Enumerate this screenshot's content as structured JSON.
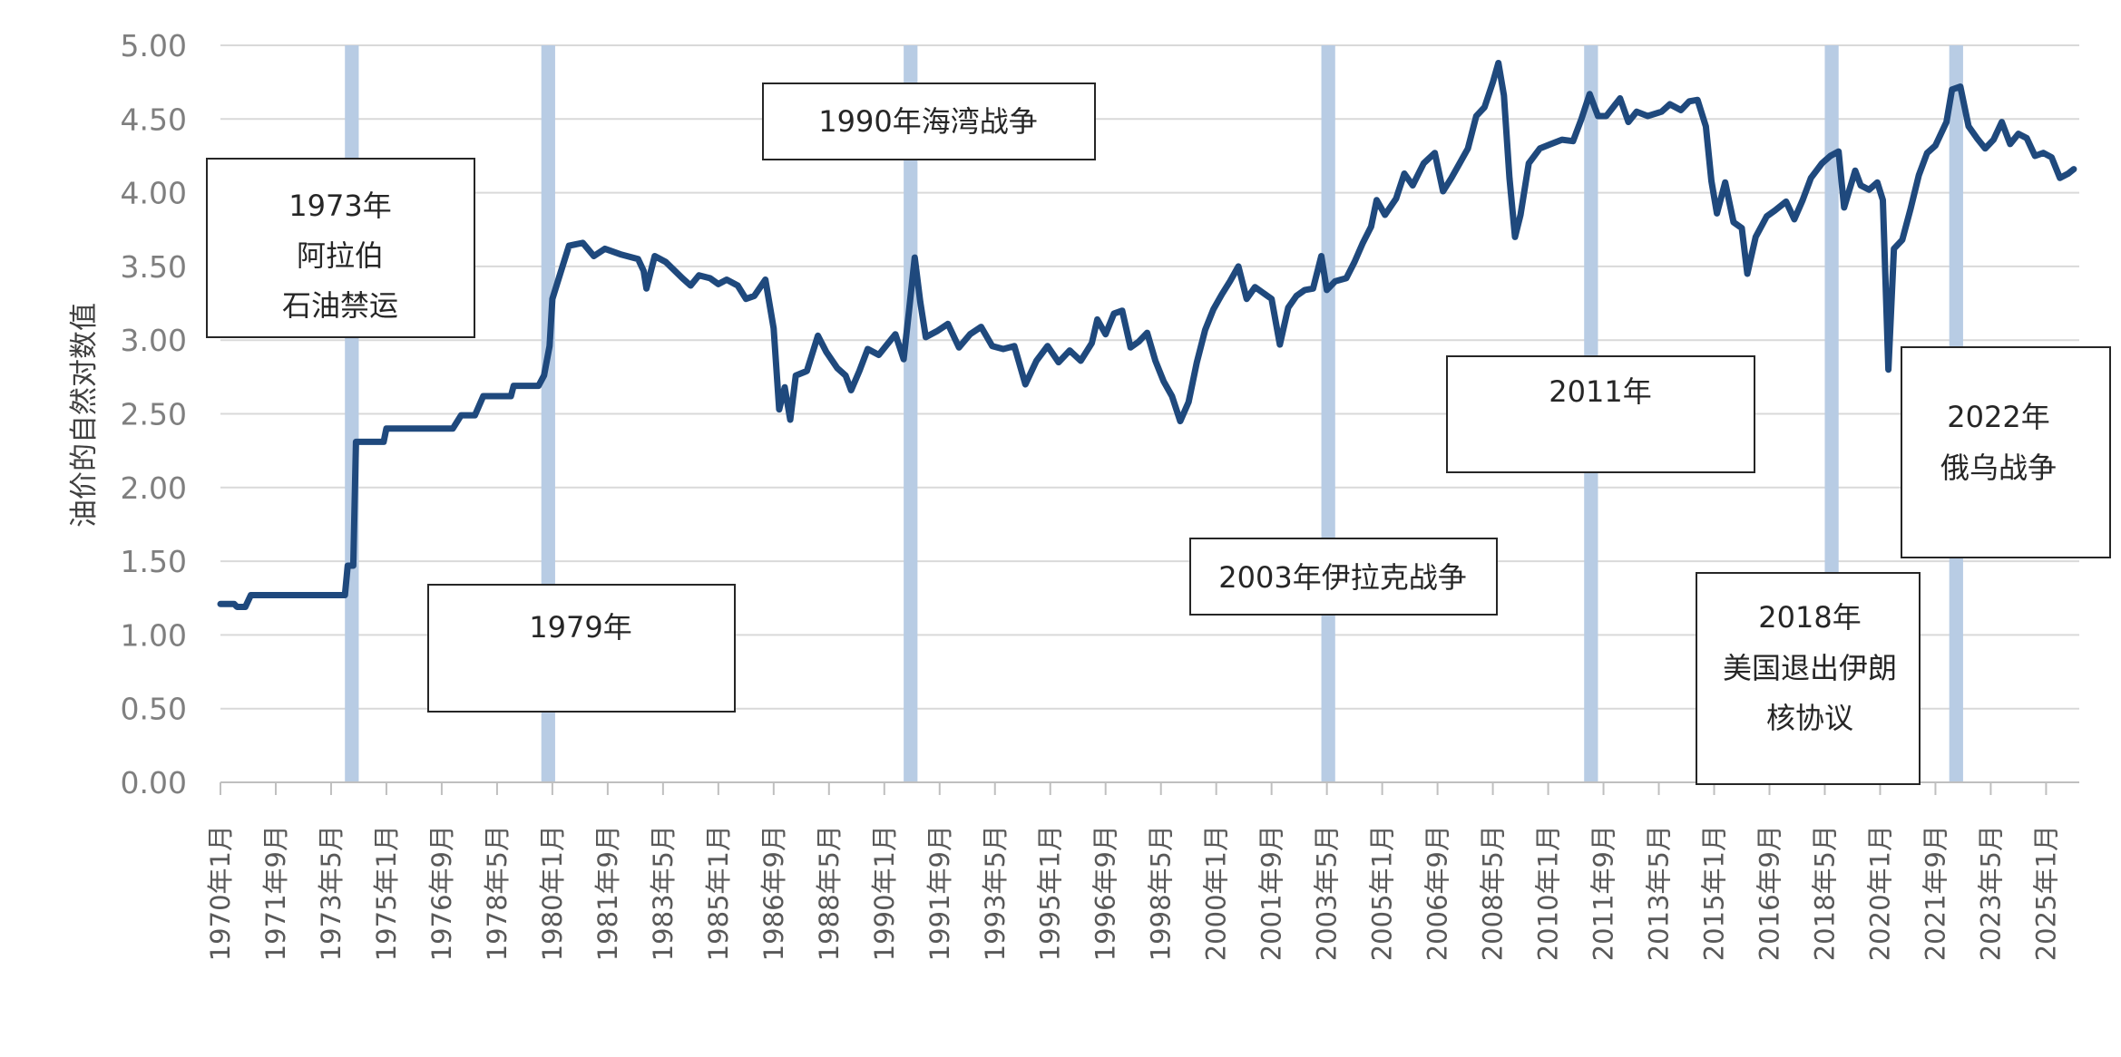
{
  "chart_data": {
    "type": "line",
    "title": "",
    "xlabel": "",
    "ylabel": "油价的自然对数值",
    "ylim": [
      0,
      5
    ],
    "yticks": [
      "0.00",
      "0.50",
      "1.00",
      "1.50",
      "2.00",
      "2.50",
      "3.00",
      "3.50",
      "4.00",
      "4.50",
      "5.00"
    ],
    "xlim": [
      "1970-01",
      "2026-01"
    ],
    "grid": "horizontal",
    "xtick_labels": [
      "1970年1月",
      "1971年9月",
      "1973年5月",
      "1975年1月",
      "1976年9月",
      "1978年5月",
      "1980年1月",
      "1981年9月",
      "1983年5月",
      "1985年1月",
      "1986年9月",
      "1988年5月",
      "1990年1月",
      "1991年9月",
      "1993年5月",
      "1995年1月",
      "1996年9月",
      "1998年5月",
      "2000年1月",
      "2001年9月",
      "2003年5月",
      "2005年1月",
      "2006年9月",
      "2008年5月",
      "2010年1月",
      "2011年9月",
      "2013年5月",
      "2015年1月",
      "2016年9月",
      "2018年5月",
      "2020年1月",
      "2021年9月",
      "2023年5月",
      "2025年1月"
    ],
    "xtick_dates": [
      "1970-01",
      "1971-09",
      "1973-05",
      "1975-01",
      "1976-09",
      "1978-05",
      "1980-01",
      "1981-09",
      "1983-05",
      "1985-01",
      "1986-09",
      "1988-05",
      "1990-01",
      "1991-09",
      "1993-05",
      "1995-01",
      "1996-09",
      "1998-05",
      "2000-01",
      "2001-09",
      "2003-05",
      "2005-01",
      "2006-09",
      "2008-05",
      "2010-01",
      "2011-09",
      "2013-05",
      "2015-01",
      "2016-09",
      "2018-05",
      "2020-01",
      "2021-09",
      "2023-05",
      "2025-01"
    ],
    "series": [
      {
        "color": "#1f497d",
        "points": [
          [
            "1970-01",
            1.21
          ],
          [
            "1970-06",
            1.21
          ],
          [
            "1970-07",
            1.19
          ],
          [
            "1970-10",
            1.19
          ],
          [
            "1970-12",
            1.27
          ],
          [
            "1973-08",
            1.27
          ],
          [
            "1973-10",
            1.27
          ],
          [
            "1973-11",
            1.47
          ],
          [
            "1974-01",
            1.47
          ],
          [
            "1974-02",
            2.31
          ],
          [
            "1974-12",
            2.31
          ],
          [
            "1975-01",
            2.4
          ],
          [
            "1977-01",
            2.4
          ],
          [
            "1977-04",
            2.49
          ],
          [
            "1977-09",
            2.49
          ],
          [
            "1977-12",
            2.62
          ],
          [
            "1978-10",
            2.62
          ],
          [
            "1978-11",
            2.69
          ],
          [
            "1979-08",
            2.69
          ],
          [
            "1979-10",
            2.76
          ],
          [
            "1979-12",
            2.96
          ],
          [
            "1980-01",
            3.28
          ],
          [
            "1980-04",
            3.46
          ],
          [
            "1980-07",
            3.64
          ],
          [
            "1980-12",
            3.66
          ],
          [
            "1981-04",
            3.57
          ],
          [
            "1981-08",
            3.62
          ],
          [
            "1982-02",
            3.58
          ],
          [
            "1982-08",
            3.55
          ],
          [
            "1982-10",
            3.47
          ],
          [
            "1982-11",
            3.35
          ],
          [
            "1983-02",
            3.57
          ],
          [
            "1983-06",
            3.53
          ],
          [
            "1983-12",
            3.42
          ],
          [
            "1984-03",
            3.37
          ],
          [
            "1984-06",
            3.44
          ],
          [
            "1984-10",
            3.42
          ],
          [
            "1985-01",
            3.38
          ],
          [
            "1985-04",
            3.41
          ],
          [
            "1985-08",
            3.37
          ],
          [
            "1985-11",
            3.28
          ],
          [
            "1986-02",
            3.3
          ],
          [
            "1986-06",
            3.41
          ],
          [
            "1986-09",
            3.08
          ],
          [
            "1986-11",
            2.53
          ],
          [
            "1987-01",
            2.68
          ],
          [
            "1987-03",
            2.46
          ],
          [
            "1987-05",
            2.76
          ],
          [
            "1987-09",
            2.79
          ],
          [
            "1988-01",
            3.03
          ],
          [
            "1988-04",
            2.92
          ],
          [
            "1988-08",
            2.81
          ],
          [
            "1988-11",
            2.76
          ],
          [
            "1989-01",
            2.66
          ],
          [
            "1989-04",
            2.79
          ],
          [
            "1989-07",
            2.94
          ],
          [
            "1989-11",
            2.9
          ],
          [
            "1990-02",
            2.97
          ],
          [
            "1990-05",
            3.04
          ],
          [
            "1990-08",
            2.87
          ],
          [
            "1990-10",
            3.21
          ],
          [
            "1990-12",
            3.56
          ],
          [
            "1991-02",
            3.26
          ],
          [
            "1991-04",
            3.02
          ],
          [
            "1991-08",
            3.06
          ],
          [
            "1991-12",
            3.11
          ],
          [
            "1992-04",
            2.95
          ],
          [
            "1992-08",
            3.04
          ],
          [
            "1992-12",
            3.09
          ],
          [
            "1993-04",
            2.96
          ],
          [
            "1993-08",
            2.94
          ],
          [
            "1993-12",
            2.96
          ],
          [
            "1994-04",
            2.7
          ],
          [
            "1994-08",
            2.86
          ],
          [
            "1994-12",
            2.96
          ],
          [
            "1995-04",
            2.85
          ],
          [
            "1995-08",
            2.93
          ],
          [
            "1995-12",
            2.86
          ],
          [
            "1996-04",
            2.98
          ],
          [
            "1996-06",
            3.14
          ],
          [
            "1996-09",
            3.04
          ],
          [
            "1996-12",
            3.18
          ],
          [
            "1997-03",
            3.2
          ],
          [
            "1997-06",
            2.95
          ],
          [
            "1997-09",
            2.99
          ],
          [
            "1997-12",
            3.05
          ],
          [
            "1998-03",
            2.86
          ],
          [
            "1998-06",
            2.72
          ],
          [
            "1998-09",
            2.62
          ],
          [
            "1998-12",
            2.45
          ],
          [
            "1999-03",
            2.58
          ],
          [
            "1999-06",
            2.85
          ],
          [
            "1999-09",
            3.07
          ],
          [
            "1999-12",
            3.21
          ],
          [
            "2000-03",
            3.31
          ],
          [
            "2000-06",
            3.4
          ],
          [
            "2000-09",
            3.5
          ],
          [
            "2000-12",
            3.28
          ],
          [
            "2001-03",
            3.36
          ],
          [
            "2001-06",
            3.32
          ],
          [
            "2001-09",
            3.28
          ],
          [
            "2001-12",
            2.97
          ],
          [
            "2002-03",
            3.22
          ],
          [
            "2002-06",
            3.3
          ],
          [
            "2002-09",
            3.34
          ],
          [
            "2002-12",
            3.35
          ],
          [
            "2003-03",
            3.57
          ],
          [
            "2003-05",
            3.34
          ],
          [
            "2003-08",
            3.4
          ],
          [
            "2003-12",
            3.42
          ],
          [
            "2004-03",
            3.53
          ],
          [
            "2004-06",
            3.66
          ],
          [
            "2004-09",
            3.77
          ],
          [
            "2004-11",
            3.95
          ],
          [
            "2005-02",
            3.85
          ],
          [
            "2005-06",
            3.96
          ],
          [
            "2005-09",
            4.13
          ],
          [
            "2005-12",
            4.05
          ],
          [
            "2006-04",
            4.2
          ],
          [
            "2006-08",
            4.27
          ],
          [
            "2006-11",
            4.01
          ],
          [
            "2007-02",
            4.1
          ],
          [
            "2007-05",
            4.2
          ],
          [
            "2007-08",
            4.3
          ],
          [
            "2007-11",
            4.52
          ],
          [
            "2008-02",
            4.58
          ],
          [
            "2008-05",
            4.75
          ],
          [
            "2008-07",
            4.88
          ],
          [
            "2008-09",
            4.66
          ],
          [
            "2008-11",
            4.1
          ],
          [
            "2009-01",
            3.7
          ],
          [
            "2009-03",
            3.85
          ],
          [
            "2009-06",
            4.2
          ],
          [
            "2009-10",
            4.3
          ],
          [
            "2010-02",
            4.33
          ],
          [
            "2010-06",
            4.36
          ],
          [
            "2010-10",
            4.35
          ],
          [
            "2011-01",
            4.5
          ],
          [
            "2011-04",
            4.67
          ],
          [
            "2011-07",
            4.52
          ],
          [
            "2011-10",
            4.52
          ],
          [
            "2012-03",
            4.64
          ],
          [
            "2012-06",
            4.48
          ],
          [
            "2012-09",
            4.55
          ],
          [
            "2013-01",
            4.52
          ],
          [
            "2013-06",
            4.55
          ],
          [
            "2013-09",
            4.6
          ],
          [
            "2014-01",
            4.56
          ],
          [
            "2014-04",
            4.62
          ],
          [
            "2014-07",
            4.63
          ],
          [
            "2014-10",
            4.45
          ],
          [
            "2014-12",
            4.08
          ],
          [
            "2015-02",
            3.86
          ],
          [
            "2015-05",
            4.07
          ],
          [
            "2015-08",
            3.8
          ],
          [
            "2015-11",
            3.76
          ],
          [
            "2016-01",
            3.45
          ],
          [
            "2016-04",
            3.7
          ],
          [
            "2016-08",
            3.84
          ],
          [
            "2016-11",
            3.88
          ],
          [
            "2017-03",
            3.94
          ],
          [
            "2017-06",
            3.82
          ],
          [
            "2017-09",
            3.95
          ],
          [
            "2017-12",
            4.1
          ],
          [
            "2018-04",
            4.2
          ],
          [
            "2018-07",
            4.25
          ],
          [
            "2018-10",
            4.28
          ],
          [
            "2018-12",
            3.9
          ],
          [
            "2019-04",
            4.15
          ],
          [
            "2019-06",
            4.05
          ],
          [
            "2019-09",
            4.02
          ],
          [
            "2019-12",
            4.07
          ],
          [
            "2020-02",
            3.95
          ],
          [
            "2020-04",
            2.8
          ],
          [
            "2020-06",
            3.62
          ],
          [
            "2020-09",
            3.68
          ],
          [
            "2020-12",
            3.89
          ],
          [
            "2021-03",
            4.12
          ],
          [
            "2021-06",
            4.27
          ],
          [
            "2021-09",
            4.32
          ],
          [
            "2021-11",
            4.4
          ],
          [
            "2022-01",
            4.48
          ],
          [
            "2022-03",
            4.7
          ],
          [
            "2022-06",
            4.72
          ],
          [
            "2022-09",
            4.45
          ],
          [
            "2022-12",
            4.37
          ],
          [
            "2023-03",
            4.3
          ],
          [
            "2023-06",
            4.36
          ],
          [
            "2023-09",
            4.48
          ],
          [
            "2023-12",
            4.33
          ],
          [
            "2024-03",
            4.4
          ],
          [
            "2024-06",
            4.37
          ],
          [
            "2024-09",
            4.25
          ],
          [
            "2024-12",
            4.27
          ],
          [
            "2025-03",
            4.24
          ],
          [
            "2025-06",
            4.1
          ],
          [
            "2025-09",
            4.13
          ],
          [
            "2025-11",
            4.16
          ]
        ]
      }
    ],
    "shaded_periods": [
      {
        "start": "1973-10",
        "end": "1974-03"
      },
      {
        "start": "1979-09",
        "end": "1980-02"
      },
      {
        "start": "1990-08",
        "end": "1991-01"
      },
      {
        "start": "2003-03",
        "end": "2003-08"
      },
      {
        "start": "2011-02",
        "end": "2011-07"
      },
      {
        "start": "2018-05",
        "end": "2018-10"
      },
      {
        "start": "2022-02",
        "end": "2022-07"
      }
    ],
    "shade_color": "#b8cce4",
    "annotations": [
      {
        "lines": [
          "1973年",
          "阿拉伯",
          "石油禁运"
        ]
      },
      {
        "lines": [
          "1979年"
        ]
      },
      {
        "lines": [
          "1990年海湾战争"
        ]
      },
      {
        "lines": [
          "2003年伊拉克战争"
        ]
      },
      {
        "lines": [
          "2011年"
        ]
      },
      {
        "lines": [
          "2018年",
          "美国退出伊朗",
          "核协议"
        ]
      },
      {
        "lines": [
          "2022年",
          "俄乌战争"
        ]
      }
    ]
  }
}
